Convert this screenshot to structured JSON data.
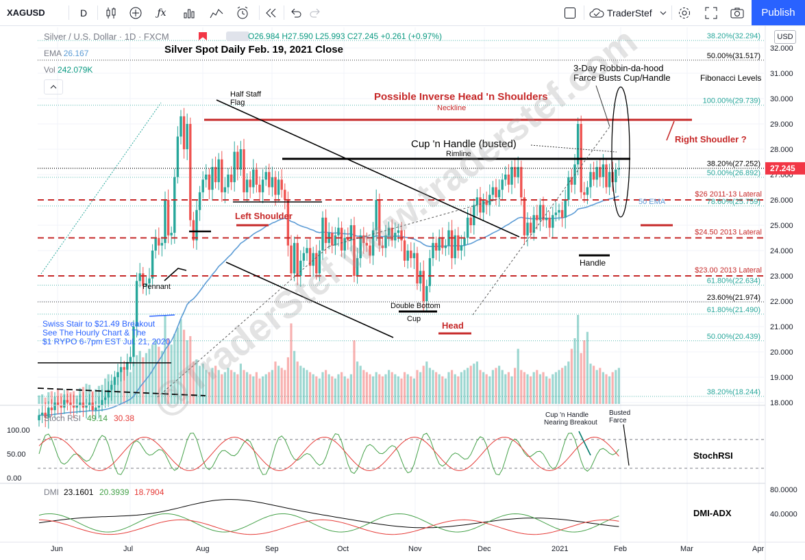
{
  "toolbar": {
    "symbol": "XAGUSD",
    "interval": "D",
    "user": "TraderStef",
    "publish": "Publish",
    "icons": [
      "candles-icon",
      "add-indicator-icon",
      "fx-icon",
      "bar-chart-icon",
      "compare-icon",
      "alert-icon",
      "replay-icon",
      "undo-icon",
      "redo-icon",
      "layout-square-icon",
      "cloud-icon",
      "chevron-down-icon",
      "gear-icon",
      "fullscreen-icon",
      "camera-icon"
    ]
  },
  "legend": {
    "title": "Silver / U.S. Dollar · 1D · FXCM",
    "open": "O26.984",
    "high": "H27.590",
    "low": "L25.993",
    "close": "C27.245",
    "change": "+0.261 (+0.97%)",
    "ema_label": "EMA",
    "ema_value": "26.167",
    "vol_label": "Vol",
    "vol_value": "242.079K"
  },
  "currency": "USD",
  "chart_title": "Silver Spot Daily Feb. 19, 2021 Close",
  "watermark": "@TraderStef   www.traderstef.com",
  "colors": {
    "up": "#26a69a",
    "down": "#ef5350",
    "red_line": "#c62828",
    "ema": "#5b9bd5",
    "stoch_k": "#43a047",
    "stoch_d": "#e53935",
    "price_badge": "#f23645"
  },
  "chart_data": [
    {
      "type": "candlestick",
      "title": "Silver Spot Daily Feb. 19, 2021 Close",
      "x_ticks": [
        "Jun",
        "Jul",
        "Aug",
        "Sep",
        "Oct",
        "Nov",
        "Dec",
        "2021",
        "Feb",
        "Mar",
        "Apr"
      ],
      "y_ticks": [
        "32.000",
        "31.000",
        "30.000",
        "29.000",
        "28.000",
        "27.000",
        "26.000",
        "25.000",
        "24.000",
        "23.000",
        "22.000",
        "21.000",
        "20.000",
        "19.000",
        "18.000"
      ],
      "ylim": [
        18.0,
        32.0
      ],
      "last_price": "27.245",
      "closes": [
        17.5,
        17.6,
        17.4,
        17.8,
        17.7,
        18.0,
        17.9,
        17.8,
        18.1,
        18.0,
        17.9,
        17.8,
        17.9,
        18.0,
        17.8,
        17.9,
        18.0,
        17.7,
        17.8,
        17.9,
        18.1,
        18.2,
        18.5,
        18.7,
        19.0,
        19.2,
        19.4,
        19.3,
        19.6,
        19.8,
        21.0,
        22.8,
        23.1,
        22.6,
        22.7,
        22.9,
        24.0,
        24.5,
        24.2,
        24.3,
        26.0,
        24.6,
        24.7,
        26.9,
        28.5,
        29.3,
        28.0,
        29.0,
        25.2,
        24.4,
        25.6,
        26.3,
        26.8,
        27.0,
        26.4,
        27.3,
        26.7,
        27.6,
        26.3,
        26.5,
        27.0,
        26.7,
        27.9,
        27.2,
        28.0,
        26.3,
        26.8,
        26.5,
        27.2,
        26.6,
        26.3,
        26.8,
        27.1,
        26.5,
        26.9,
        26.2,
        26.8,
        26.4,
        26.0,
        24.2,
        23.1,
        24.3,
        23.0,
        23.6,
        23.9,
        24.1,
        23.4,
        23.9,
        23.1,
        24.0,
        25.3,
        24.3,
        24.7,
        24.2,
        24.6,
        24.9,
        24.0,
        24.5,
        24.4,
        25.0,
        23.0,
        23.7,
        24.6,
        24.3,
        24.2,
        23.8,
        24.8,
        26.0,
        24.2,
        24.1,
        24.6,
        24.9,
        24.4,
        24.7,
        24.8,
        24.4,
        23.6,
        24.0,
        23.7,
        23.9,
        22.7,
        23.2,
        22.0,
        22.6,
        23.7,
        24.3,
        24.0,
        24.5,
        24.1,
        24.2,
        24.8,
        23.7,
        24.6,
        24.0,
        24.2,
        24.5,
        25.3,
        25.0,
        25.8,
        26.1,
        25.5,
        26.0,
        25.8,
        26.2,
        26.5,
        26.1,
        26.4,
        26.8,
        27.0,
        26.6,
        27.3,
        26.9,
        27.3,
        26.1,
        24.6,
        25.1,
        24.7,
        25.4,
        25.2,
        25.8,
        25.2,
        25.3,
        24.9,
        25.4,
        25.5,
        25.6,
        25.3,
        26.0,
        26.9,
        26.6,
        27.4,
        29.0,
        26.3,
        26.2,
        26.5,
        27.1,
        26.8,
        27.3,
        26.9,
        27.4,
        26.5,
        27.1,
        26.7,
        27.2,
        27.245
      ]
    },
    {
      "type": "volume",
      "values": [
        40,
        45,
        30,
        55,
        60,
        35,
        70,
        50,
        45,
        65,
        55,
        60,
        40,
        75,
        80,
        95,
        90,
        60,
        70,
        85,
        90,
        120,
        140,
        110,
        130,
        150,
        160,
        170,
        180,
        150,
        200,
        230,
        250,
        220,
        240,
        260,
        280,
        300,
        270,
        250,
        420,
        310,
        280,
        330,
        360,
        400,
        350,
        300,
        320,
        200,
        210,
        180,
        190,
        160,
        150,
        170,
        180,
        160,
        140,
        150,
        170,
        160,
        150,
        140,
        190,
        160,
        150,
        140,
        130,
        150,
        120,
        130,
        140,
        150,
        160,
        200,
        180,
        170,
        160,
        220,
        380,
        250,
        200,
        180,
        170,
        160,
        150,
        140,
        130,
        120,
        150,
        160,
        140,
        130,
        120,
        140,
        150,
        130,
        120,
        140,
        300,
        200,
        180,
        160,
        150,
        140,
        130,
        150,
        140,
        130,
        140,
        160,
        150,
        140,
        130,
        120,
        150,
        140,
        130,
        120,
        160,
        150,
        180,
        200,
        170,
        160,
        150,
        140,
        130,
        120,
        150,
        160,
        140,
        130,
        150,
        160,
        170,
        180,
        190,
        200,
        160,
        150,
        140,
        130,
        160,
        170,
        180,
        160,
        140,
        150,
        130,
        170,
        260,
        160,
        150,
        140,
        130,
        150,
        160,
        140,
        150,
        130,
        120,
        140,
        150,
        160,
        170,
        180,
        200,
        260,
        310,
        420,
        240,
        300,
        340,
        190,
        180,
        160,
        170,
        150,
        140,
        130,
        150,
        160,
        170
      ]
    },
    {
      "type": "line",
      "title": "Stoch RSI",
      "series": [
        {
          "name": "K",
          "current": "49.14"
        },
        {
          "name": "D",
          "current": "30.38"
        }
      ],
      "y_ticks": [
        "100.00",
        "50.00",
        "0.00"
      ],
      "ylim": [
        0,
        100
      ],
      "label": "StochRSI"
    },
    {
      "type": "line",
      "title": "DMI",
      "series": [
        {
          "name": "ADX",
          "current": "23.1601"
        },
        {
          "name": "+DI",
          "current": "20.3939"
        },
        {
          "name": "-DI",
          "current": "18.7904"
        }
      ],
      "y_ticks": [
        "80.0000",
        "40.0000"
      ],
      "label": "DMI-ADX"
    }
  ],
  "annotations": {
    "inverse_hs": "Possible Inverse Head 'n Shoulders",
    "neckline": "Neckline",
    "cup_handle": "Cup 'n Handle (busted)",
    "rimline": "Rimline",
    "robbin_1": "3-Day Robbin-da-hood",
    "robbin_2": "Farce Busts Cup/Handle",
    "fib_levels": "Fibonacci Levels",
    "right_shoulder": "Right Shoudler ?",
    "left_shoulder": "Left Shoulder",
    "head": "Head",
    "handle": "Handle",
    "double_bottom": "Double Bottom",
    "cup": "Cup",
    "half_staff_1": "Half Staff",
    "half_staff_2": "Flag",
    "pennant": "Pennant",
    "swiss_1": "Swiss Stair to $21.49 Breakout",
    "swiss_2": "See The Hourly Chart & The",
    "swiss_3": "$1 RYPO 6-7pm EST Jul. 21, 2020",
    "ema50": "50 EMA",
    "lat26": "$26 2011-13 Lateral",
    "lat2450": "$24.50 2013 Lateral",
    "lat23": "$23.00 2013 Lateral",
    "cup_nearing_1": "Cup 'n Handle",
    "cup_nearing_2": "Nearing Breakout",
    "busted_1": "Busted",
    "busted_2": "Farce"
  },
  "fib": {
    "f1": "38.20%(32.294)",
    "f2": "50.00%(31.517)",
    "f3": "100.00%(29.739)",
    "f4": "38.20%(27.252)",
    "f5": "50.00%(26.892)",
    "f6": "78.60%(25.759)",
    "f7": "61.80%(22.634)",
    "f8": "23.60%(21.974)",
    "f9": "61.80%(21.490)",
    "f10": "50.00%(20.439)",
    "f11": "38.20%(18.244)"
  }
}
